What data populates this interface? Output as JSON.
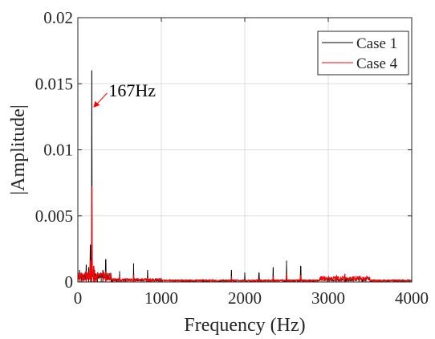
{
  "chart_data": {
    "type": "line",
    "title": "",
    "xlabel": "Frequency (Hz)",
    "ylabel": "|Amplitude|",
    "xlim": [
      0,
      4000
    ],
    "ylim": [
      0,
      0.02
    ],
    "xticks": [
      0,
      1000,
      2000,
      3000,
      4000
    ],
    "xtick_labels": [
      "0",
      "1000",
      "2000",
      "3000",
      "4000"
    ],
    "yticks": [
      0,
      0.005,
      0.01,
      0.015,
      0.02
    ],
    "ytick_labels": [
      "0",
      "0.005",
      "0.01",
      "0.015",
      "0.02"
    ],
    "grid": true,
    "legend_position": "top-right",
    "series": [
      {
        "name": "Case 1",
        "color": "#000000",
        "peaks": [
          {
            "x": 20,
            "y": 0.0009
          },
          {
            "x": 40,
            "y": 0.0007
          },
          {
            "x": 60,
            "y": 0.0006
          },
          {
            "x": 100,
            "y": 0.0013
          },
          {
            "x": 130,
            "y": 0.0011
          },
          {
            "x": 150,
            "y": 0.0028
          },
          {
            "x": 167,
            "y": 0.016
          },
          {
            "x": 200,
            "y": 0.0009
          },
          {
            "x": 235,
            "y": 0.0007
          },
          {
            "x": 280,
            "y": 0.0006
          },
          {
            "x": 300,
            "y": 0.0009
          },
          {
            "x": 334,
            "y": 0.0017
          },
          {
            "x": 400,
            "y": 0.0004
          },
          {
            "x": 500,
            "y": 0.0008
          },
          {
            "x": 668,
            "y": 0.0014
          },
          {
            "x": 835,
            "y": 0.0009
          },
          {
            "x": 1000,
            "y": 0.0003
          },
          {
            "x": 1500,
            "y": 0.0002
          },
          {
            "x": 1840,
            "y": 0.0009
          },
          {
            "x": 2000,
            "y": 0.0007
          },
          {
            "x": 2170,
            "y": 0.0007
          },
          {
            "x": 2340,
            "y": 0.0011
          },
          {
            "x": 2500,
            "y": 0.0016
          },
          {
            "x": 2670,
            "y": 0.0012
          },
          {
            "x": 3000,
            "y": 0.0003
          },
          {
            "x": 3200,
            "y": 0.0005
          }
        ]
      },
      {
        "name": "Case 4",
        "color": "#ff0000",
        "peaks": [
          {
            "x": 20,
            "y": 0.0006
          },
          {
            "x": 60,
            "y": 0.0005
          },
          {
            "x": 100,
            "y": 0.0008
          },
          {
            "x": 150,
            "y": 0.0016
          },
          {
            "x": 167,
            "y": 0.0072
          },
          {
            "x": 190,
            "y": 0.0012
          },
          {
            "x": 220,
            "y": 0.0006
          },
          {
            "x": 300,
            "y": 0.0006
          },
          {
            "x": 334,
            "y": 0.0008
          },
          {
            "x": 500,
            "y": 0.0004
          },
          {
            "x": 668,
            "y": 0.0005
          },
          {
            "x": 835,
            "y": 0.0003
          },
          {
            "x": 1840,
            "y": 0.0004
          },
          {
            "x": 2340,
            "y": 0.0004
          },
          {
            "x": 2500,
            "y": 0.0006
          },
          {
            "x": 2670,
            "y": 0.0005
          },
          {
            "x": 3100,
            "y": 0.0005
          },
          {
            "x": 3200,
            "y": 0.0006
          },
          {
            "x": 3300,
            "y": 0.0004
          }
        ]
      }
    ],
    "annotations": [
      {
        "text": "167Hz",
        "x": 167,
        "y": 0.0132
      }
    ]
  }
}
